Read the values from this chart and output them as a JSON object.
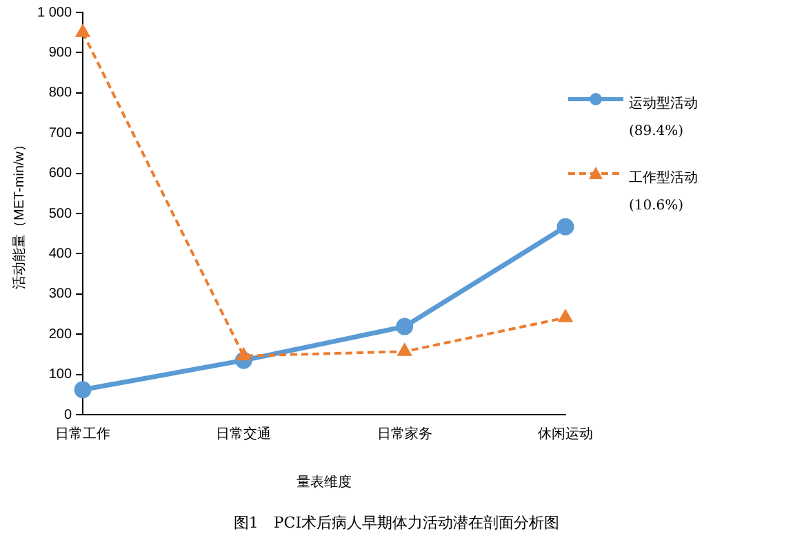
{
  "chart_data": {
    "type": "line",
    "xlabel": "量表维度",
    "ylabel": "活动能量（MET-min/w）",
    "annotations": [
      "图1　PCI术后病人早期体力活动潜在剖面分析图"
    ],
    "categories": [
      "日常工作",
      "日常交通",
      "日常家务",
      "休闲运动"
    ],
    "series": [
      {
        "name": "运动型活动 (89.4%)",
        "color": "#5b9bd5",
        "values": [
          62,
          135,
          219,
          467
        ],
        "marker": "circle",
        "line_style": "solid"
      },
      {
        "name": "工作型活动 (10.6%)",
        "color": "#ed7d31",
        "values": [
          950,
          146,
          157,
          241
        ],
        "marker": "triangle",
        "line_style": "dashed"
      }
    ],
    "ylim": [
      0,
      1000
    ],
    "yticks": [
      0,
      100,
      200,
      300,
      400,
      500,
      600,
      700,
      800,
      900,
      {
        "value": 1000,
        "label": "1 000"
      }
    ],
    "grid": false,
    "legend": "right"
  }
}
